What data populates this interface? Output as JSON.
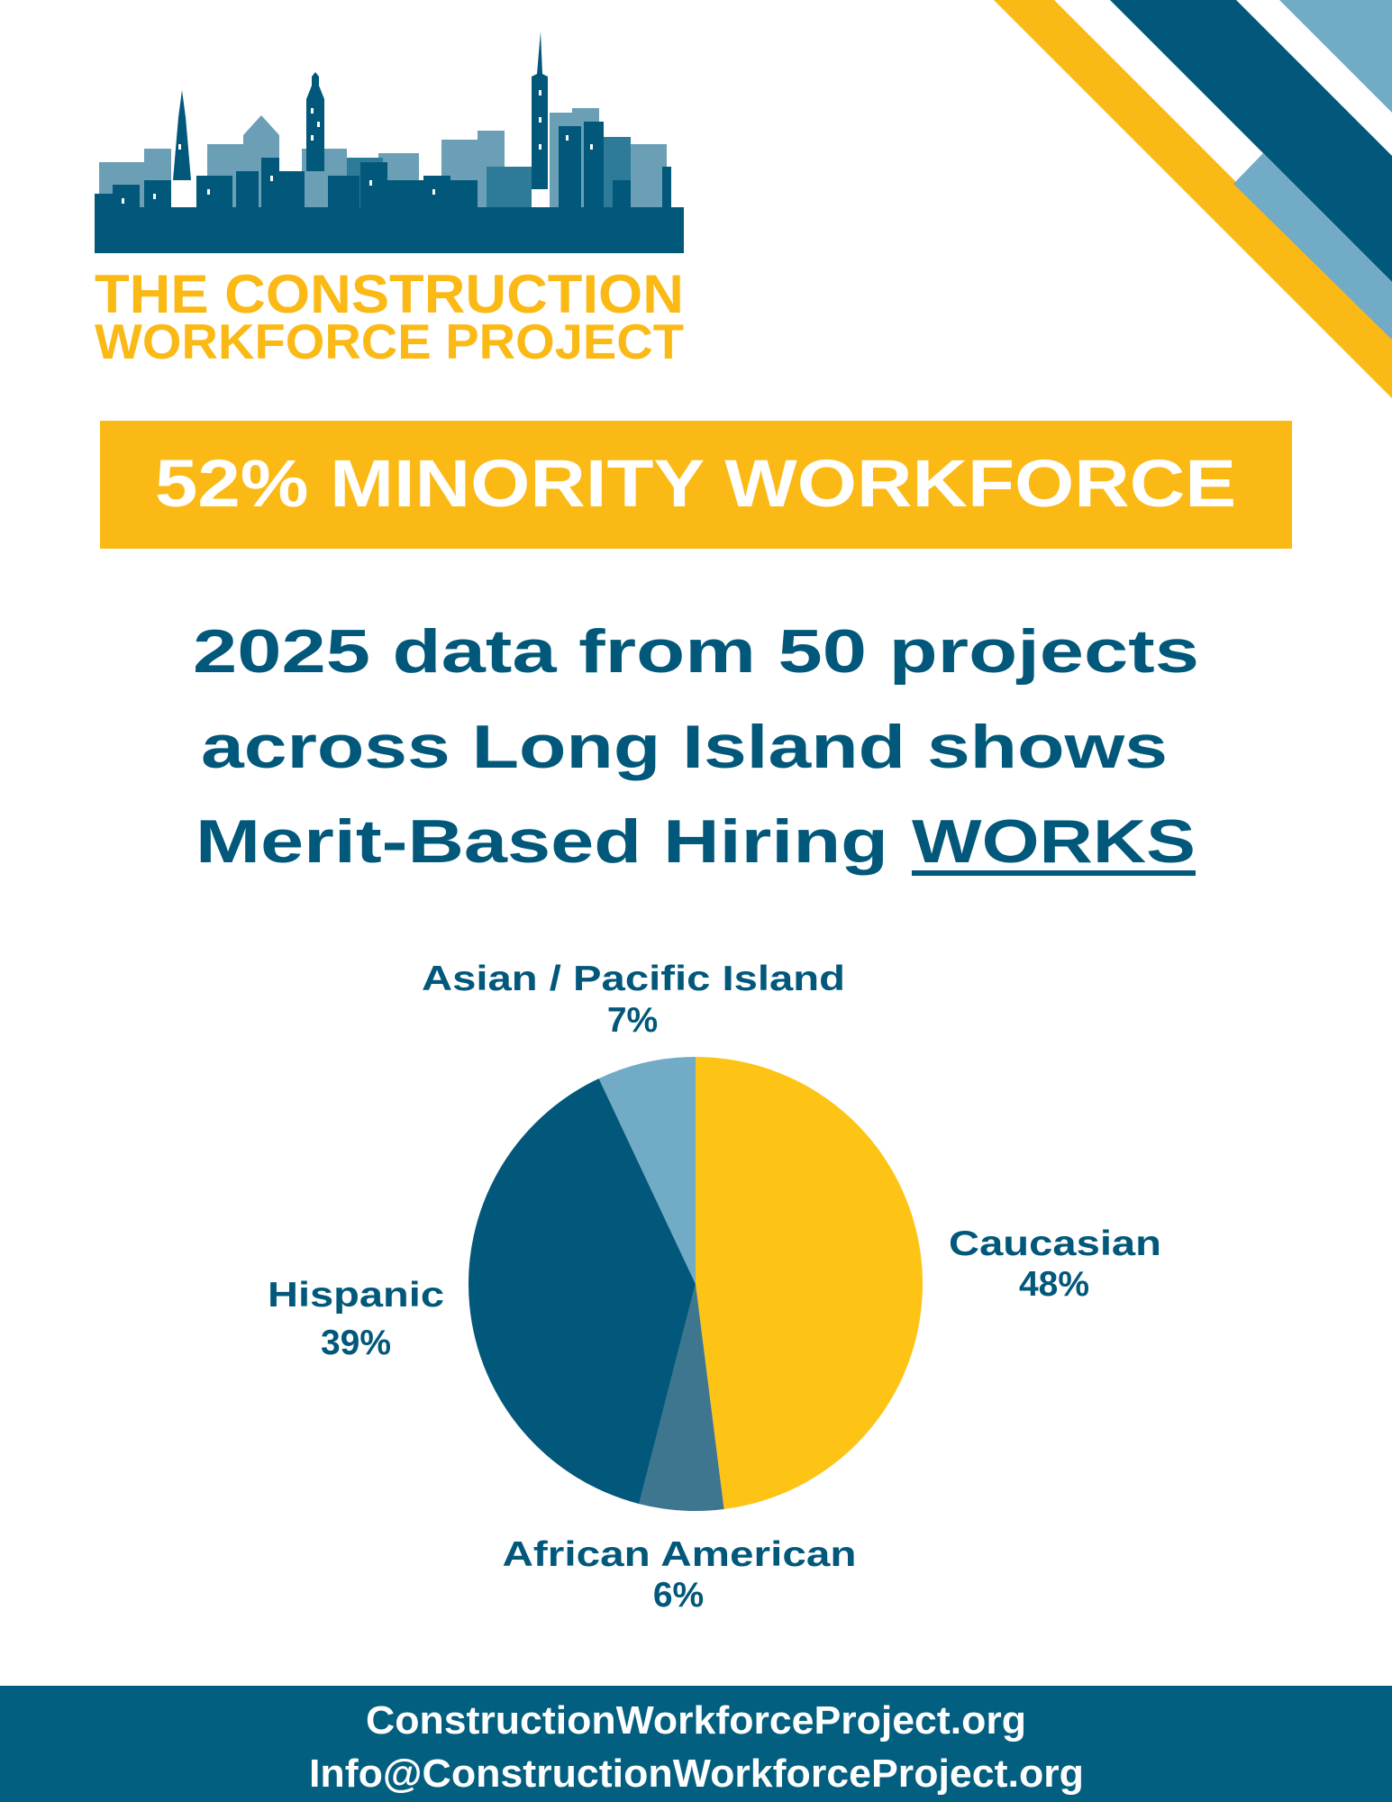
{
  "logo": {
    "line1": "THE CONSTRUCTION",
    "line2": "WORKFORCE PROJECT"
  },
  "banner": {
    "text": "52% MINORITY WORKFORCE"
  },
  "headline": {
    "line1": "2025 data from 50 projects",
    "line2": "across Long Island shows",
    "line3": "Merit-Based Hiring",
    "emphasis": "WORKS"
  },
  "colors": {
    "dark_blue": "#02587a",
    "yellow": "#fbb916",
    "light_blue": "#72abc6",
    "mid_blue": "#3e7690",
    "footer": "#035f80"
  },
  "chart_data": {
    "type": "pie",
    "start": "top",
    "direction": "clockwise",
    "slices": [
      {
        "label": "Caucasian",
        "value": 48,
        "display": "48%",
        "color": "#fdc315"
      },
      {
        "label": "African American",
        "value": 6,
        "display": "6%",
        "color": "#3e7690"
      },
      {
        "label": "Hispanic",
        "value": 39,
        "display": "39%",
        "color": "#02587a"
      },
      {
        "label": "Asian / Pacific Island",
        "value": 7,
        "display": "7%",
        "color": "#72abc6"
      }
    ]
  },
  "footer": {
    "website": "ConstructionWorkforceProject.org",
    "email": "Info@ConstructionWorkforceProject.org"
  }
}
